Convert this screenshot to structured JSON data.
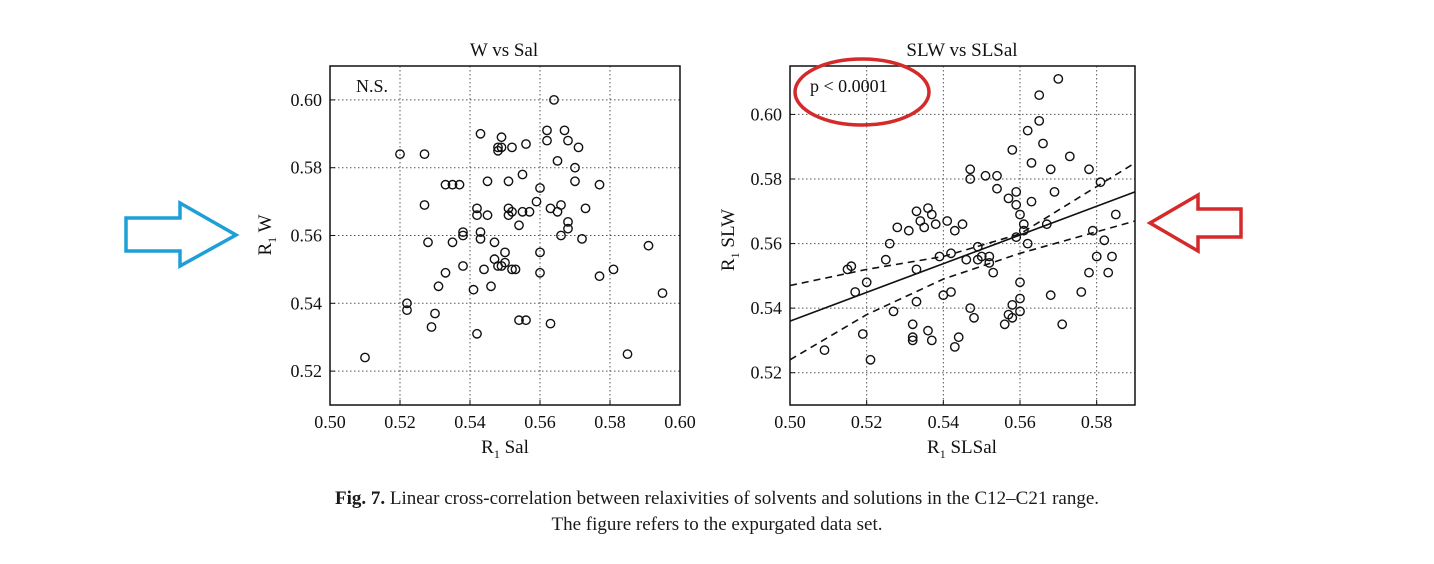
{
  "figure": {
    "caption_label": "Fig. 7.",
    "caption_line1": "Linear cross-correlation between relaxivities of solvents and solutions in the C12–C21 range.",
    "caption_line2": "The figure refers to the expurgated data set."
  },
  "annotations": {
    "left_arrow": {
      "color": "#1e9fd6",
      "direction": "right"
    },
    "right_arrow": {
      "color": "#d42a2a",
      "direction": "left"
    },
    "highlight_ellipse": {
      "color": "#d42a2a",
      "target": "p < 0.0001"
    }
  },
  "chart_data": [
    {
      "type": "scatter",
      "title": "W vs Sal",
      "xlabel_main": "R",
      "xlabel_sub": "1",
      "xlabel_rest": " Sal",
      "ylabel_main": "R",
      "ylabel_sub": "1",
      "ylabel_rest": " W",
      "xlim": [
        0.5,
        0.6
      ],
      "ylim": [
        0.51,
        0.61
      ],
      "xticks": [
        "0.50",
        "0.52",
        "0.54",
        "0.56",
        "0.58",
        "0.60"
      ],
      "yticks": [
        "0.52",
        "0.54",
        "0.56",
        "0.58",
        "0.60"
      ],
      "grid": true,
      "annotation": "N.S.",
      "points": [
        [
          0.51,
          0.524
        ],
        [
          0.52,
          0.584
        ],
        [
          0.522,
          0.54
        ],
        [
          0.522,
          0.538
        ],
        [
          0.527,
          0.584
        ],
        [
          0.527,
          0.569
        ],
        [
          0.528,
          0.558
        ],
        [
          0.529,
          0.533
        ],
        [
          0.53,
          0.537
        ],
        [
          0.531,
          0.545
        ],
        [
          0.533,
          0.549
        ],
        [
          0.533,
          0.575
        ],
        [
          0.535,
          0.558
        ],
        [
          0.535,
          0.575
        ],
        [
          0.537,
          0.575
        ],
        [
          0.538,
          0.561
        ],
        [
          0.538,
          0.56
        ],
        [
          0.538,
          0.551
        ],
        [
          0.541,
          0.544
        ],
        [
          0.542,
          0.531
        ],
        [
          0.542,
          0.566
        ],
        [
          0.542,
          0.568
        ],
        [
          0.543,
          0.59
        ],
        [
          0.543,
          0.561
        ],
        [
          0.543,
          0.559
        ],
        [
          0.544,
          0.55
        ],
        [
          0.545,
          0.576
        ],
        [
          0.545,
          0.566
        ],
        [
          0.546,
          0.545
        ],
        [
          0.547,
          0.553
        ],
        [
          0.547,
          0.558
        ],
        [
          0.548,
          0.586
        ],
        [
          0.548,
          0.585
        ],
        [
          0.548,
          0.551
        ],
        [
          0.549,
          0.589
        ],
        [
          0.549,
          0.586
        ],
        [
          0.549,
          0.551
        ],
        [
          0.55,
          0.555
        ],
        [
          0.55,
          0.552
        ],
        [
          0.551,
          0.576
        ],
        [
          0.551,
          0.568
        ],
        [
          0.551,
          0.566
        ],
        [
          0.552,
          0.586
        ],
        [
          0.552,
          0.567
        ],
        [
          0.552,
          0.55
        ],
        [
          0.553,
          0.55
        ],
        [
          0.554,
          0.563
        ],
        [
          0.554,
          0.535
        ],
        [
          0.555,
          0.578
        ],
        [
          0.555,
          0.567
        ],
        [
          0.556,
          0.535
        ],
        [
          0.556,
          0.587
        ],
        [
          0.557,
          0.567
        ],
        [
          0.559,
          0.57
        ],
        [
          0.56,
          0.574
        ],
        [
          0.56,
          0.549
        ],
        [
          0.56,
          0.555
        ],
        [
          0.562,
          0.588
        ],
        [
          0.562,
          0.591
        ],
        [
          0.563,
          0.534
        ],
        [
          0.563,
          0.568
        ],
        [
          0.564,
          0.6
        ],
        [
          0.565,
          0.582
        ],
        [
          0.565,
          0.567
        ],
        [
          0.566,
          0.569
        ],
        [
          0.566,
          0.56
        ],
        [
          0.567,
          0.591
        ],
        [
          0.568,
          0.564
        ],
        [
          0.568,
          0.562
        ],
        [
          0.568,
          0.588
        ],
        [
          0.57,
          0.58
        ],
        [
          0.57,
          0.576
        ],
        [
          0.571,
          0.586
        ],
        [
          0.572,
          0.559
        ],
        [
          0.573,
          0.568
        ],
        [
          0.577,
          0.575
        ],
        [
          0.577,
          0.548
        ],
        [
          0.581,
          0.55
        ],
        [
          0.585,
          0.525
        ],
        [
          0.591,
          0.557
        ],
        [
          0.595,
          0.543
        ]
      ]
    },
    {
      "type": "scatter",
      "title": "SLW vs SLSal",
      "xlabel_main": "R",
      "xlabel_sub": "1",
      "xlabel_rest": " SLSal",
      "ylabel_main": "R",
      "ylabel_sub": "1",
      "ylabel_rest": " SLW",
      "xlim": [
        0.5,
        0.59
      ],
      "ylim": [
        0.51,
        0.615
      ],
      "xticks": [
        "0.50",
        "0.52",
        "0.54",
        "0.56",
        "0.58"
      ],
      "yticks": [
        "0.52",
        "0.54",
        "0.56",
        "0.58",
        "0.60"
      ],
      "grid": true,
      "annotation": "p < 0.0001",
      "fit_line": [
        [
          0.5,
          0.536
        ],
        [
          0.59,
          0.576
        ]
      ],
      "confidence_upper": [
        [
          0.5,
          0.547
        ],
        [
          0.52,
          0.552
        ],
        [
          0.54,
          0.556
        ],
        [
          0.56,
          0.563
        ],
        [
          0.59,
          0.585
        ]
      ],
      "confidence_lower": [
        [
          0.5,
          0.524
        ],
        [
          0.52,
          0.538
        ],
        [
          0.54,
          0.549
        ],
        [
          0.56,
          0.557
        ],
        [
          0.59,
          0.567
        ]
      ],
      "points": [
        [
          0.509,
          0.527
        ],
        [
          0.515,
          0.552
        ],
        [
          0.516,
          0.553
        ],
        [
          0.517,
          0.545
        ],
        [
          0.519,
          0.532
        ],
        [
          0.52,
          0.548
        ],
        [
          0.521,
          0.524
        ],
        [
          0.525,
          0.555
        ],
        [
          0.526,
          0.56
        ],
        [
          0.527,
          0.539
        ],
        [
          0.528,
          0.565
        ],
        [
          0.531,
          0.564
        ],
        [
          0.532,
          0.535
        ],
        [
          0.532,
          0.53
        ],
        [
          0.532,
          0.531
        ],
        [
          0.533,
          0.542
        ],
        [
          0.533,
          0.57
        ],
        [
          0.533,
          0.552
        ],
        [
          0.534,
          0.567
        ],
        [
          0.535,
          0.565
        ],
        [
          0.536,
          0.571
        ],
        [
          0.536,
          0.533
        ],
        [
          0.537,
          0.53
        ],
        [
          0.537,
          0.569
        ],
        [
          0.538,
          0.566
        ],
        [
          0.539,
          0.556
        ],
        [
          0.54,
          0.544
        ],
        [
          0.541,
          0.567
        ],
        [
          0.542,
          0.557
        ],
        [
          0.542,
          0.545
        ],
        [
          0.543,
          0.528
        ],
        [
          0.543,
          0.564
        ],
        [
          0.544,
          0.531
        ],
        [
          0.545,
          0.566
        ],
        [
          0.546,
          0.555
        ],
        [
          0.547,
          0.54
        ],
        [
          0.547,
          0.583
        ],
        [
          0.547,
          0.58
        ],
        [
          0.548,
          0.537
        ],
        [
          0.549,
          0.555
        ],
        [
          0.549,
          0.559
        ],
        [
          0.55,
          0.556
        ],
        [
          0.551,
          0.581
        ],
        [
          0.552,
          0.554
        ],
        [
          0.552,
          0.556
        ],
        [
          0.553,
          0.551
        ],
        [
          0.554,
          0.581
        ],
        [
          0.554,
          0.577
        ],
        [
          0.556,
          0.535
        ],
        [
          0.557,
          0.574
        ],
        [
          0.557,
          0.538
        ],
        [
          0.558,
          0.537
        ],
        [
          0.558,
          0.541
        ],
        [
          0.558,
          0.589
        ],
        [
          0.559,
          0.572
        ],
        [
          0.559,
          0.562
        ],
        [
          0.559,
          0.576
        ],
        [
          0.56,
          0.569
        ],
        [
          0.56,
          0.548
        ],
        [
          0.56,
          0.543
        ],
        [
          0.56,
          0.539
        ],
        [
          0.561,
          0.564
        ],
        [
          0.561,
          0.566
        ],
        [
          0.562,
          0.56
        ],
        [
          0.562,
          0.595
        ],
        [
          0.563,
          0.585
        ],
        [
          0.563,
          0.573
        ],
        [
          0.565,
          0.606
        ],
        [
          0.565,
          0.598
        ],
        [
          0.566,
          0.591
        ],
        [
          0.567,
          0.566
        ],
        [
          0.568,
          0.544
        ],
        [
          0.568,
          0.583
        ],
        [
          0.569,
          0.576
        ],
        [
          0.57,
          0.611
        ],
        [
          0.571,
          0.535
        ],
        [
          0.573,
          0.587
        ],
        [
          0.576,
          0.545
        ],
        [
          0.578,
          0.583
        ],
        [
          0.578,
          0.551
        ],
        [
          0.579,
          0.564
        ],
        [
          0.58,
          0.556
        ],
        [
          0.581,
          0.579
        ],
        [
          0.582,
          0.561
        ],
        [
          0.583,
          0.551
        ],
        [
          0.584,
          0.556
        ],
        [
          0.585,
          0.569
        ]
      ]
    }
  ]
}
